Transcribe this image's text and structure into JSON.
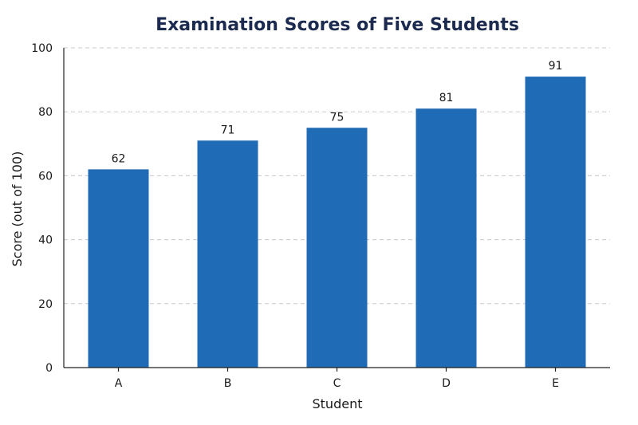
{
  "chart_data": {
    "type": "bar",
    "title": "Examination Scores of Five Students",
    "xlabel": "Student",
    "ylabel": "Score (out of 100)",
    "categories": [
      "A",
      "B",
      "C",
      "D",
      "E"
    ],
    "values": [
      62,
      71,
      75,
      81,
      91
    ],
    "ylim": [
      0,
      100
    ],
    "yticks": [
      0,
      20,
      40,
      60,
      80,
      100
    ],
    "grid": true,
    "bar_color": "#1f6bb5"
  }
}
